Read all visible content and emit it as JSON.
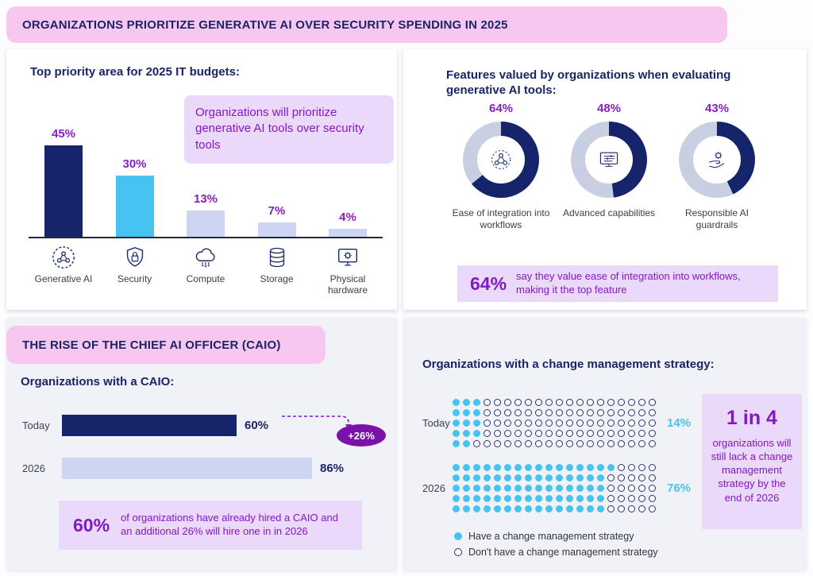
{
  "colors": {
    "navy_fill": "#16246b",
    "donut_rest": "#c8cfe3",
    "purple": "#8318c6",
    "pink": "#f8c7ef",
    "light_blue": "#47c3f2",
    "lavender": "#cdd5f2",
    "callout_bg": "#ead9f8"
  },
  "section_ai": {
    "banner": "ORGANIZATIONS PRIORITIZE GENERATIVE AI OVER SECURITY SPENDING IN 2025",
    "budget": {
      "callout": "Organizations will prioritize generative AI tools over security tools"
    },
    "features": {
      "callout_value": "64%",
      "callout_text": "say they value ease of integration into workflows, making it the top feature"
    }
  },
  "section_caio": {
    "banner": "THE RISE OF THE CHIEF AI OFFICER (CAIO)",
    "caio": {
      "callout_value": "60%",
      "callout_text": "of organizations have already hired a CAIO and an additional 26% will hire one in in 2026"
    },
    "change": {
      "callout_title": "1 in 4",
      "callout_text": "organizations will still lack a change management strategy by the end of 2026"
    }
  },
  "chart_data": [
    {
      "type": "bar",
      "title": "Top priority area for 2025 IT budgets:",
      "categories": [
        "Generative AI",
        "Security",
        "Compute",
        "Storage",
        "Physical hardware"
      ],
      "values": [
        45,
        30,
        13,
        7,
        4
      ],
      "value_labels": [
        "45%",
        "30%",
        "13%",
        "7%",
        "4%"
      ],
      "ylim": [
        0,
        50
      ],
      "grid": false,
      "bar_colors": [
        "#16246b",
        "#47c3f2",
        "#cdd5f2",
        "#cdd5f2",
        "#cdd5f2"
      ]
    },
    {
      "type": "pie",
      "subtype": "donut-set",
      "title": "Features valued by organizations when evaluating generative AI tools:",
      "donuts": [
        {
          "label": "Ease of integration into workflows",
          "value": 64,
          "display": "64%"
        },
        {
          "label": "Advanced capabilities",
          "value": 48,
          "display": "48%"
        },
        {
          "label": "Responsible AI guardrails",
          "value": 43,
          "display": "43%"
        }
      ]
    },
    {
      "type": "bar",
      "subtype": "horizontal",
      "title": "Organizations with a CAIO:",
      "categories": [
        "Today",
        "2026"
      ],
      "values": [
        60,
        86
      ],
      "value_labels": [
        "60%",
        "86%"
      ],
      "xlim": [
        0,
        100
      ],
      "annotation": "+26%",
      "bar_colors": [
        "#16246b",
        "#cdd5f2"
      ]
    },
    {
      "type": "heatmap",
      "subtype": "waffle-dot-matrix",
      "title": "Organizations with a change management strategy:",
      "rows": [
        {
          "label": "Today",
          "value": 14,
          "display": "14%",
          "total": 100
        },
        {
          "label": "2026",
          "value": 76,
          "display": "76%",
          "total": 100
        }
      ],
      "legend": [
        "Have a change management strategy",
        "Don't have a change management strategy"
      ]
    }
  ]
}
